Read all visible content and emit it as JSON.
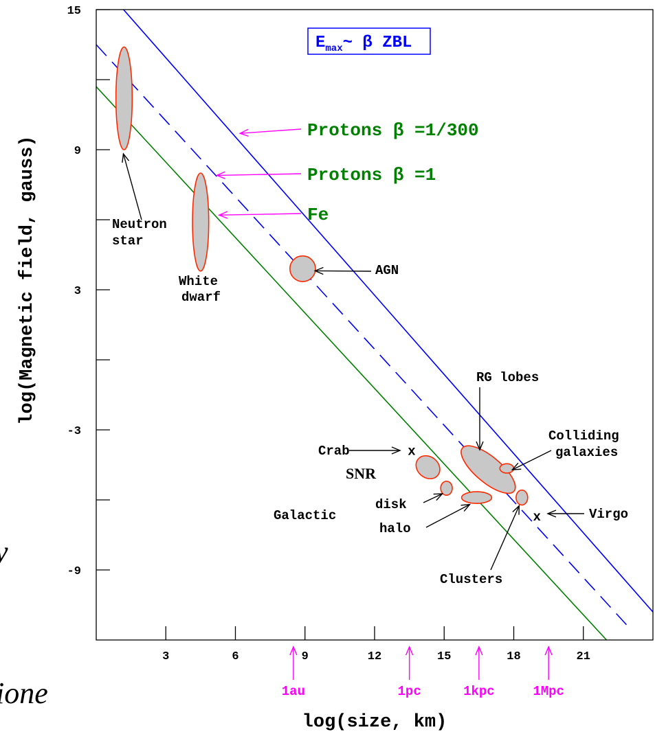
{
  "chart_data": {
    "type": "line",
    "title": "",
    "xlabel": "log(size, km)",
    "ylabel": "log(Magnetic field, gauss)",
    "xlim": [
      0,
      24
    ],
    "ylim": [
      -12,
      15
    ],
    "x_ticks": [
      3,
      6,
      9,
      12,
      15,
      18,
      21
    ],
    "y_tick_labels": [
      {
        "value": 15,
        "label": "15"
      },
      {
        "value": 9,
        "label": "9"
      },
      {
        "value": 3,
        "label": "3"
      },
      {
        "value": -3,
        "label": "-3"
      },
      {
        "value": -9,
        "label": "-9"
      }
    ],
    "y_minor_ticks": [
      12,
      6,
      0,
      -6
    ],
    "formula_box": {
      "base": "E",
      "subscript": "max",
      "rest": "~ β ZBL"
    },
    "series": [
      {
        "name": "Protons β =1/300",
        "color": "#0000ff",
        "dash": "solid",
        "points": [
          [
            1.0,
            15.2
          ],
          [
            24.0,
            -10.8
          ]
        ]
      },
      {
        "name": "Protons β =1",
        "color": "#0000ff",
        "dash": "dashed",
        "points": [
          [
            0.0,
            13.5
          ],
          [
            23.0,
            -11.5
          ]
        ]
      },
      {
        "name": "Fe",
        "color": "#008000",
        "dash": "solid",
        "points": [
          [
            0.0,
            11.7
          ],
          [
            22.0,
            -12.0
          ]
        ]
      }
    ],
    "line_labels": [
      {
        "text": "Protons β =1/300",
        "color": "#008000",
        "arrow_color": "#ff00ff",
        "arrow_to": [
          6.2,
          9.7
        ]
      },
      {
        "text": "Protons β =1",
        "color": "#008000",
        "arrow_color": "#ff00ff",
        "arrow_to": [
          5.2,
          7.9
        ]
      },
      {
        "text": "Fe",
        "color": "#008000",
        "arrow_color": "#ff00ff",
        "arrow_to": [
          5.3,
          6.2
        ]
      }
    ],
    "objects": [
      {
        "label": "Neutron star",
        "center": [
          1.2,
          11.2
        ],
        "extent": [
          0.35,
          2.2
        ],
        "angle": 0
      },
      {
        "label": "White dwarf",
        "center": [
          4.5,
          5.9
        ],
        "extent": [
          0.35,
          2.1
        ],
        "angle": 0
      },
      {
        "label": "AGN",
        "center": [
          8.9,
          3.9
        ],
        "extent": [
          0.55,
          0.55
        ],
        "angle": 0
      },
      {
        "label": "SNR",
        "center": [
          14.3,
          -4.6
        ],
        "extent": [
          0.55,
          0.45
        ],
        "angle": -40
      },
      {
        "label": "Galactic disk",
        "center": [
          15.1,
          -5.5
        ],
        "extent": [
          0.25,
          0.3
        ],
        "angle": 0
      },
      {
        "label": "Galactic halo",
        "center": [
          16.4,
          -5.9
        ],
        "extent": [
          0.65,
          0.25
        ],
        "angle": 0
      },
      {
        "label": "RG lobes",
        "center": [
          16.9,
          -4.7
        ],
        "extent": [
          1.45,
          0.55
        ],
        "angle": -40
      },
      {
        "label": "Colliding galaxies",
        "center": [
          17.7,
          -4.65
        ],
        "extent": [
          0.3,
          0.2
        ],
        "angle": 0
      },
      {
        "label": "Clusters",
        "center": [
          18.35,
          -5.9
        ],
        "extent": [
          0.25,
          0.32
        ],
        "angle": 0
      }
    ],
    "point_markers": [
      {
        "label": "Crab",
        "marker": "x",
        "x": 13.6,
        "y": -3.9
      },
      {
        "label": "Virgo",
        "marker": "x",
        "x": 19.0,
        "y": -6.7
      }
    ],
    "scale_markers": [
      {
        "label": "1au",
        "x": 8.5
      },
      {
        "label": "1pc",
        "x": 13.5
      },
      {
        "label": "1kpc",
        "x": 16.5
      },
      {
        "label": "1Mpc",
        "x": 19.5
      }
    ],
    "colors": {
      "ellipse_fill": "#c8c8c8",
      "ellipse_stroke": "#ff2a00",
      "scale_marker": "#ff00ff"
    }
  },
  "fragments": {
    "left_char": "y",
    "bottom_word": "ione"
  }
}
